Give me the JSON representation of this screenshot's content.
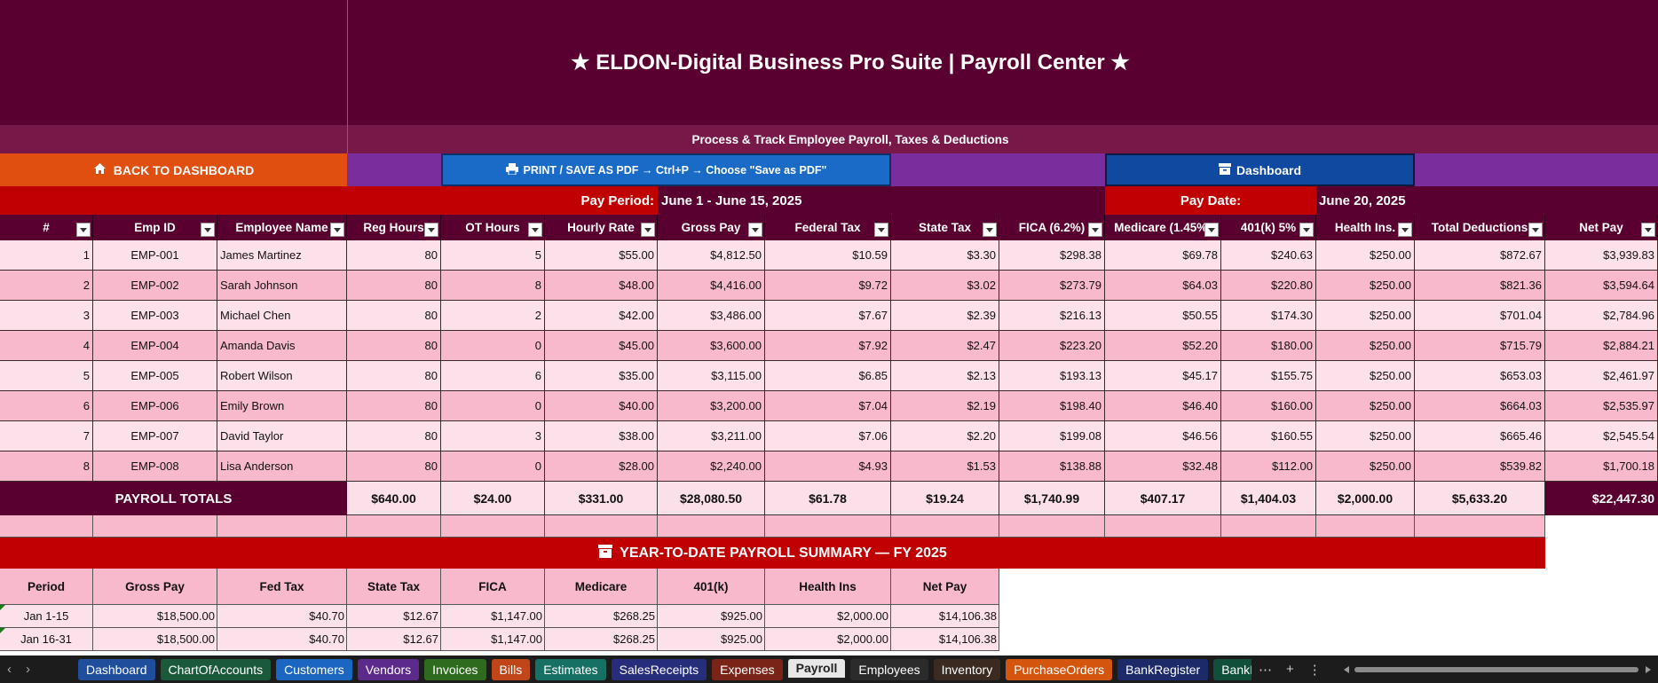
{
  "title": "★  ELDON-Digital Business Pro Suite  |  Payroll Center  ★",
  "subtitle": "Process & Track Employee Payroll, Taxes & Deductions",
  "buttons": {
    "back": "BACK TO DASHBOARD",
    "print": "PRINT / SAVE AS PDF  →  Ctrl+P  →  Choose \"Save as PDF\"",
    "dashboard": "Dashboard"
  },
  "pay_period": {
    "label": "Pay Period:",
    "value": "June 1 - June 15, 2025"
  },
  "pay_date": {
    "label": "Pay Date:",
    "value": "June 20, 2025"
  },
  "columns": [
    "#",
    "Emp ID",
    "Employee Name",
    "Reg Hours",
    "OT Hours",
    "Hourly Rate",
    "Gross Pay",
    "Federal Tax",
    "State Tax",
    "FICA (6.2%)",
    "Medicare (1.45%)",
    "401(k) 5%",
    "Health Ins.",
    "Total Deductions",
    "Net Pay"
  ],
  "rows": [
    [
      "1",
      "EMP-001",
      "James Martinez",
      "80",
      "5",
      "$55.00",
      "$4,812.50",
      "$10.59",
      "$3.30",
      "$298.38",
      "$69.78",
      "$240.63",
      "$250.00",
      "$872.67",
      "$3,939.83"
    ],
    [
      "2",
      "EMP-002",
      "Sarah Johnson",
      "80",
      "8",
      "$48.00",
      "$4,416.00",
      "$9.72",
      "$3.02",
      "$273.79",
      "$64.03",
      "$220.80",
      "$250.00",
      "$821.36",
      "$3,594.64"
    ],
    [
      "3",
      "EMP-003",
      "Michael Chen",
      "80",
      "2",
      "$42.00",
      "$3,486.00",
      "$7.67",
      "$2.39",
      "$216.13",
      "$50.55",
      "$174.30",
      "$250.00",
      "$701.04",
      "$2,784.96"
    ],
    [
      "4",
      "EMP-004",
      "Amanda Davis",
      "80",
      "0",
      "$45.00",
      "$3,600.00",
      "$7.92",
      "$2.47",
      "$223.20",
      "$52.20",
      "$180.00",
      "$250.00",
      "$715.79",
      "$2,884.21"
    ],
    [
      "5",
      "EMP-005",
      "Robert Wilson",
      "80",
      "6",
      "$35.00",
      "$3,115.00",
      "$6.85",
      "$2.13",
      "$193.13",
      "$45.17",
      "$155.75",
      "$250.00",
      "$653.03",
      "$2,461.97"
    ],
    [
      "6",
      "EMP-006",
      "Emily Brown",
      "80",
      "0",
      "$40.00",
      "$3,200.00",
      "$7.04",
      "$2.19",
      "$198.40",
      "$46.40",
      "$160.00",
      "$250.00",
      "$664.03",
      "$2,535.97"
    ],
    [
      "7",
      "EMP-007",
      "David Taylor",
      "80",
      "3",
      "$38.00",
      "$3,211.00",
      "$7.06",
      "$2.20",
      "$199.08",
      "$46.56",
      "$160.55",
      "$250.00",
      "$665.46",
      "$2,545.54"
    ],
    [
      "8",
      "EMP-008",
      "Lisa Anderson",
      "80",
      "0",
      "$28.00",
      "$2,240.00",
      "$4.93",
      "$1.53",
      "$138.88",
      "$32.48",
      "$112.00",
      "$250.00",
      "$539.82",
      "$1,700.18"
    ]
  ],
  "totals": {
    "label": "PAYROLL TOTALS",
    "values": [
      "$640.00",
      "$24.00",
      "$331.00",
      "$28,080.50",
      "$61.78",
      "$19.24",
      "$1,740.99",
      "$407.17",
      "$1,404.03",
      "$2,000.00",
      "$5,633.20",
      "$22,447.30"
    ]
  },
  "ytd": {
    "title": "YEAR-TO-DATE PAYROLL SUMMARY — FY 2025",
    "columns": [
      "Period",
      "Gross Pay",
      "Fed Tax",
      "State Tax",
      "FICA",
      "Medicare",
      "401(k)",
      "Health Ins",
      "Net Pay"
    ],
    "rows": [
      [
        "Jan 1-15",
        "$18,500.00",
        "$40.70",
        "$12.67",
        "$1,147.00",
        "$268.25",
        "$925.00",
        "$2,000.00",
        "$14,106.38"
      ],
      [
        "Jan 16-31",
        "$18,500.00",
        "$40.70",
        "$12.67",
        "$1,147.00",
        "$268.25",
        "$925.00",
        "$2,000.00",
        "$14,106.38"
      ]
    ]
  },
  "tabs": [
    {
      "label": "Dashboard",
      "color": "#1f4e9c"
    },
    {
      "label": "ChartOfAccounts",
      "color": "#1a5a3a"
    },
    {
      "label": "Customers",
      "color": "#1a66c0"
    },
    {
      "label": "Vendors",
      "color": "#5b2a8a"
    },
    {
      "label": "Invoices",
      "color": "#2e6b1e"
    },
    {
      "label": "Bills",
      "color": "#c0461a"
    },
    {
      "label": "Estimates",
      "color": "#167063"
    },
    {
      "label": "SalesReceipts",
      "color": "#262d7a"
    },
    {
      "label": "Expenses",
      "color": "#7a2418"
    },
    {
      "label": "Payroll",
      "color": "#e8e8e8"
    },
    {
      "label": "Employees",
      "color": "#2b2b2b"
    },
    {
      "label": "Inventory",
      "color": "#3a2a20"
    },
    {
      "label": "PurchaseOrders",
      "color": "#d4560e"
    },
    {
      "label": "BankRegister",
      "color": "#1d2a6a"
    },
    {
      "label": "BankI",
      "color": "#10503a"
    }
  ],
  "active_tab": "Payroll"
}
